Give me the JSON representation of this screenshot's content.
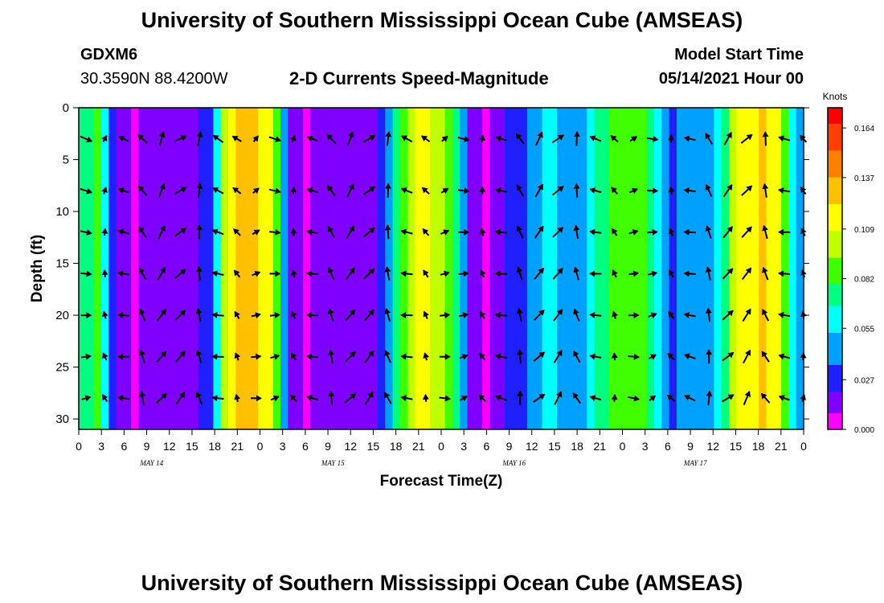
{
  "header": {
    "title_top": "University of Southern Mississippi Ocean Cube (AMSEAS)",
    "title_bottom": "University of Southern Mississippi Ocean Cube (AMSEAS)",
    "station": "GDXM6",
    "location": "30.3590N  88.4200W",
    "plot_title": "2-D Currents Speed-Magnitude",
    "model_start_label": "Model Start Time",
    "model_start_value": "05/14/2021 Hour 00"
  },
  "chart_data": {
    "type": "heatmap",
    "title": "2-D Currents Speed-Magnitude",
    "xlabel": "Forecast Time(Z)",
    "ylabel": "Depth (ft)",
    "x_tick_labels": [
      "0",
      "3",
      "6",
      "9",
      "12",
      "15",
      "18",
      "21",
      "0",
      "3",
      "6",
      "9",
      "12",
      "15",
      "18",
      "21",
      "0",
      "3",
      "6",
      "9",
      "12",
      "15",
      "18",
      "21",
      "0",
      "3",
      "6",
      "9",
      "12",
      "15",
      "18",
      "21",
      "0"
    ],
    "date_labels": [
      "MAY 14",
      "MAY 15",
      "MAY 16",
      "MAY 17"
    ],
    "xlim_hours": [
      0,
      96
    ],
    "y_ticks": [
      0,
      5,
      10,
      15,
      20,
      25,
      30
    ],
    "ylim_ft": [
      0,
      31
    ],
    "y_inverted": true,
    "colorbar": {
      "unit": "Knots",
      "tick_labels": [
        "0.164",
        "0.137",
        "0.109",
        "0.082",
        "0.055",
        "0.027",
        "0.000"
      ],
      "range": [
        0.0,
        0.175
      ],
      "colors": [
        "#ff00ff",
        "#8000ff",
        "#2020ff",
        "#00a0ff",
        "#00ffff",
        "#00ff80",
        "#40ff00",
        "#c0ff00",
        "#ffff00",
        "#ffc000",
        "#ff8000",
        "#ff4000",
        "#ff0000"
      ]
    },
    "speed_by_hour_knots": [
      0.072,
      0.078,
      0.085,
      0.065,
      0.035,
      0.012,
      0.008,
      0.005,
      0.008,
      0.012,
      0.018,
      0.02,
      0.02,
      0.02,
      0.018,
      0.018,
      0.022,
      0.035,
      0.06,
      0.1,
      0.118,
      0.126,
      0.132,
      0.128,
      0.118,
      0.11,
      0.085,
      0.048,
      0.02,
      0.008,
      0.003,
      0.01,
      0.018,
      0.02,
      0.02,
      0.02,
      0.02,
      0.02,
      0.02,
      0.02,
      0.025,
      0.045,
      0.07,
      0.092,
      0.108,
      0.112,
      0.112,
      0.106,
      0.096,
      0.085,
      0.07,
      0.04,
      0.02,
      0.008,
      0.003,
      0.01,
      0.02,
      0.025,
      0.03,
      0.035,
      0.04,
      0.045,
      0.055,
      0.06,
      0.05,
      0.045,
      0.04,
      0.05,
      0.06,
      0.07,
      0.08,
      0.09,
      0.09,
      0.09,
      0.09,
      0.085,
      0.075,
      0.06,
      0.04,
      0.025,
      0.04,
      0.045,
      0.045,
      0.05,
      0.05,
      0.06,
      0.08,
      0.1,
      0.11,
      0.115,
      0.12,
      0.125,
      0.12,
      0.11,
      0.09,
      0.06,
      0.04
    ]
  }
}
